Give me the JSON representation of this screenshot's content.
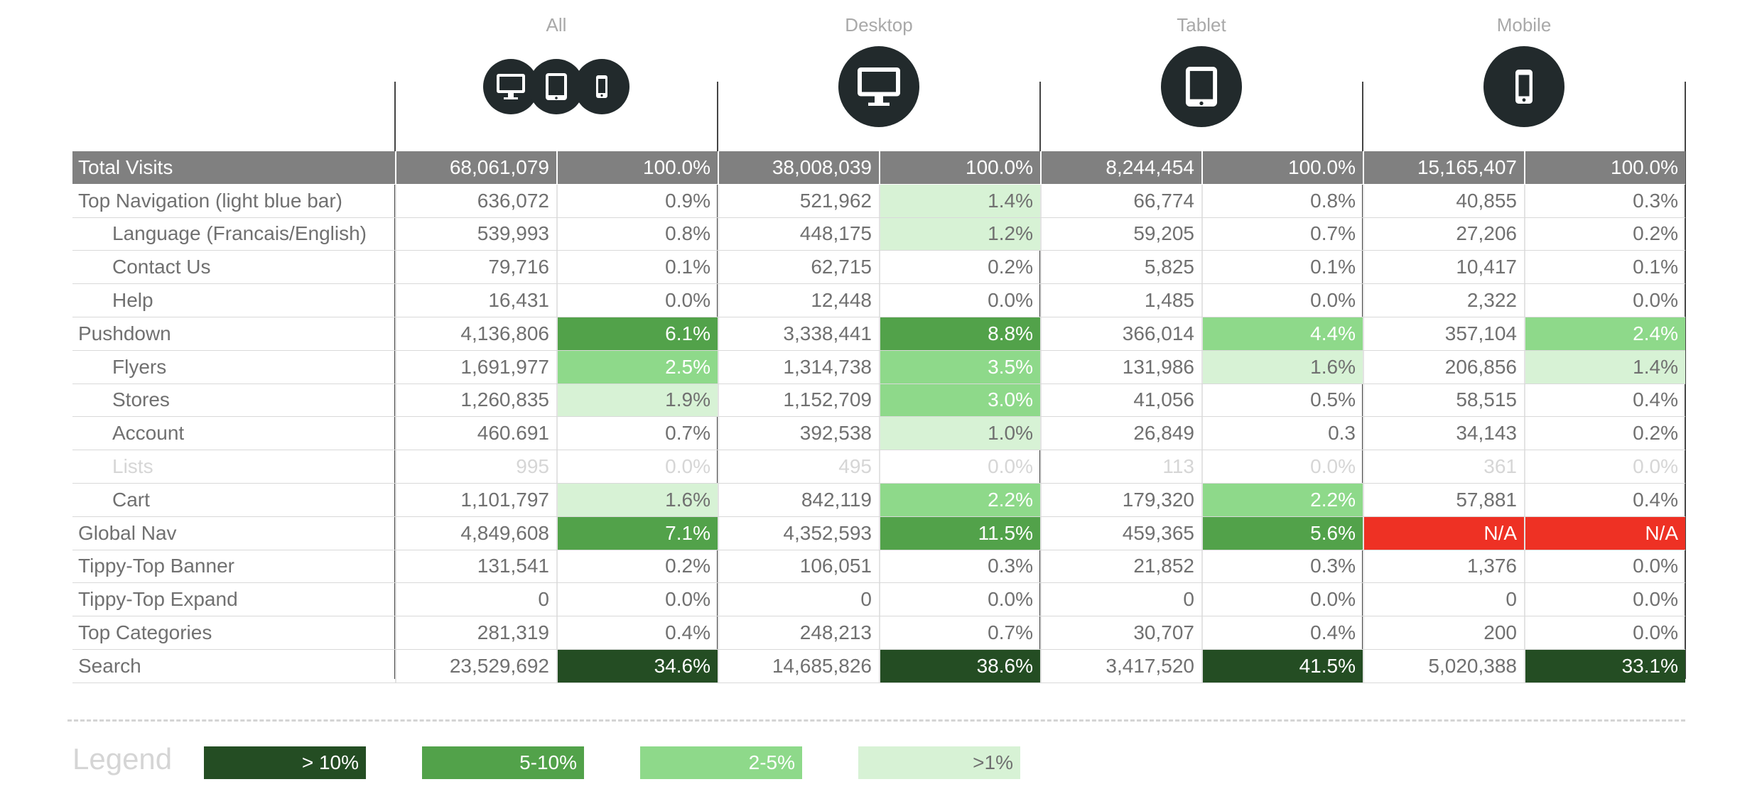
{
  "devices": {
    "all": {
      "label": "All",
      "icons": [
        "desktop-icon",
        "tablet-icon",
        "mobile-icon"
      ]
    },
    "desktop": {
      "label": "Desktop",
      "icon": "desktop-icon"
    },
    "tablet": {
      "label": "Tablet",
      "icon": "tablet-icon"
    },
    "mobile": {
      "label": "Mobile",
      "icon": "mobile-icon"
    }
  },
  "colors": {
    "header_bg": "#808080",
    "heat_dark": "#244d23",
    "heat_medium": "#52a24a",
    "heat_light": "#8ed98a",
    "heat_pale": "#d7f2d5",
    "na_red": "#ee3124",
    "icon_bg": "#222a2c"
  },
  "table": {
    "rows": [
      {
        "label": "Total Visits",
        "type": "header",
        "cells": [
          {
            "v": "68,061,079"
          },
          {
            "v": "100.0%"
          },
          {
            "v": "38,008,039"
          },
          {
            "v": "100.0%"
          },
          {
            "v": "8,244,454"
          },
          {
            "v": "100.0%"
          },
          {
            "v": "15,165,407"
          },
          {
            "v": "100.0%"
          }
        ]
      },
      {
        "label": "Top Navigation (light blue bar)",
        "type": "top",
        "cells": [
          {
            "v": "636,072"
          },
          {
            "v": "0.9%"
          },
          {
            "v": "521,962"
          },
          {
            "v": "1.4%",
            "h": "pale"
          },
          {
            "v": "66,774"
          },
          {
            "v": "0.8%"
          },
          {
            "v": "40,855"
          },
          {
            "v": "0.3%"
          }
        ]
      },
      {
        "label": "Language (Francais/English)",
        "type": "sub",
        "cells": [
          {
            "v": "539,993"
          },
          {
            "v": "0.8%"
          },
          {
            "v": "448,175"
          },
          {
            "v": "1.2%",
            "h": "pale"
          },
          {
            "v": "59,205"
          },
          {
            "v": "0.7%"
          },
          {
            "v": "27,206"
          },
          {
            "v": "0.2%"
          }
        ]
      },
      {
        "label": "Contact Us",
        "type": "sub",
        "cells": [
          {
            "v": "79,716"
          },
          {
            "v": "0.1%"
          },
          {
            "v": "62,715"
          },
          {
            "v": "0.2%"
          },
          {
            "v": "5,825"
          },
          {
            "v": "0.1%"
          },
          {
            "v": "10,417"
          },
          {
            "v": "0.1%"
          }
        ]
      },
      {
        "label": "Help",
        "type": "sub",
        "cells": [
          {
            "v": "16,431"
          },
          {
            "v": "0.0%"
          },
          {
            "v": "12,448"
          },
          {
            "v": "0.0%"
          },
          {
            "v": "1,485"
          },
          {
            "v": "0.0%"
          },
          {
            "v": "2,322"
          },
          {
            "v": "0.0%"
          }
        ]
      },
      {
        "label": "Pushdown",
        "type": "top",
        "cells": [
          {
            "v": "4,136,806"
          },
          {
            "v": "6.1%",
            "h": "med"
          },
          {
            "v": "3,338,441"
          },
          {
            "v": "8.8%",
            "h": "med"
          },
          {
            "v": "366,014"
          },
          {
            "v": "4.4%",
            "h": "light"
          },
          {
            "v": "357,104"
          },
          {
            "v": "2.4%",
            "h": "light"
          }
        ]
      },
      {
        "label": "Flyers",
        "type": "sub",
        "cells": [
          {
            "v": "1,691,977"
          },
          {
            "v": "2.5%",
            "h": "light"
          },
          {
            "v": "1,314,738"
          },
          {
            "v": "3.5%",
            "h": "light"
          },
          {
            "v": "131,986"
          },
          {
            "v": "1.6%",
            "h": "pale"
          },
          {
            "v": "206,856"
          },
          {
            "v": "1.4%",
            "h": "pale"
          }
        ]
      },
      {
        "label": "Stores",
        "type": "sub",
        "cells": [
          {
            "v": "1,260,835"
          },
          {
            "v": "1.9%",
            "h": "pale"
          },
          {
            "v": "1,152,709"
          },
          {
            "v": "3.0%",
            "h": "light"
          },
          {
            "v": "41,056"
          },
          {
            "v": "0.5%"
          },
          {
            "v": "58,515"
          },
          {
            "v": "0.4%"
          }
        ]
      },
      {
        "label": "Account",
        "type": "sub",
        "cells": [
          {
            "v": "460.691"
          },
          {
            "v": "0.7%"
          },
          {
            "v": "392,538"
          },
          {
            "v": "1.0%",
            "h": "pale"
          },
          {
            "v": "26,849"
          },
          {
            "v": "0.3"
          },
          {
            "v": "34,143"
          },
          {
            "v": "0.2%"
          }
        ]
      },
      {
        "label": "Lists",
        "type": "sub",
        "muted": true,
        "cells": [
          {
            "v": "995"
          },
          {
            "v": "0.0%"
          },
          {
            "v": "495"
          },
          {
            "v": "0.0%"
          },
          {
            "v": "113"
          },
          {
            "v": "0.0%"
          },
          {
            "v": "361"
          },
          {
            "v": "0.0%"
          }
        ]
      },
      {
        "label": "Cart",
        "type": "sub",
        "cells": [
          {
            "v": "1,101,797"
          },
          {
            "v": "1.6%",
            "h": "pale"
          },
          {
            "v": "842,119"
          },
          {
            "v": "2.2%",
            "h": "light"
          },
          {
            "v": "179,320"
          },
          {
            "v": "2.2%",
            "h": "light"
          },
          {
            "v": "57,881"
          },
          {
            "v": "0.4%"
          }
        ]
      },
      {
        "label": "Global Nav",
        "type": "top",
        "cells": [
          {
            "v": "4,849,608"
          },
          {
            "v": "7.1%",
            "h": "med"
          },
          {
            "v": "4,352,593"
          },
          {
            "v": "11.5%",
            "h": "med"
          },
          {
            "v": "459,365"
          },
          {
            "v": "5.6%",
            "h": "med"
          },
          {
            "v": "N/A",
            "h": "red"
          },
          {
            "v": "N/A",
            "h": "red"
          }
        ]
      },
      {
        "label": "Tippy-Top Banner",
        "type": "top",
        "cells": [
          {
            "v": "131,541"
          },
          {
            "v": "0.2%"
          },
          {
            "v": "106,051"
          },
          {
            "v": "0.3%"
          },
          {
            "v": "21,852"
          },
          {
            "v": "0.3%"
          },
          {
            "v": "1,376"
          },
          {
            "v": "0.0%"
          }
        ]
      },
      {
        "label": "Tippy-Top Expand",
        "type": "top",
        "cells": [
          {
            "v": "0"
          },
          {
            "v": "0.0%"
          },
          {
            "v": "0"
          },
          {
            "v": "0.0%"
          },
          {
            "v": "0"
          },
          {
            "v": "0.0%"
          },
          {
            "v": "0"
          },
          {
            "v": "0.0%"
          }
        ]
      },
      {
        "label": "Top Categories",
        "type": "top",
        "cells": [
          {
            "v": "281,319"
          },
          {
            "v": "0.4%"
          },
          {
            "v": "248,213"
          },
          {
            "v": "0.7%"
          },
          {
            "v": "30,707"
          },
          {
            "v": "0.4%"
          },
          {
            "v": "200"
          },
          {
            "v": "0.0%"
          }
        ]
      },
      {
        "label": "Search",
        "type": "top",
        "cells": [
          {
            "v": "23,529,692"
          },
          {
            "v": "34.6%",
            "h": "dark"
          },
          {
            "v": "14,685,826"
          },
          {
            "v": "38.6%",
            "h": "dark"
          },
          {
            "v": "3,417,520"
          },
          {
            "v": "41.5%",
            "h": "dark"
          },
          {
            "v": "5,020,388"
          },
          {
            "v": "33.1%",
            "h": "dark"
          }
        ]
      }
    ]
  },
  "legend": {
    "title": "Legend",
    "items": [
      {
        "label": "> 10%",
        "h": "dark"
      },
      {
        "label": "5-10%",
        "h": "med"
      },
      {
        "label": "2-5%",
        "h": "light"
      },
      {
        "label": ">1%",
        "h": "pale"
      }
    ]
  }
}
